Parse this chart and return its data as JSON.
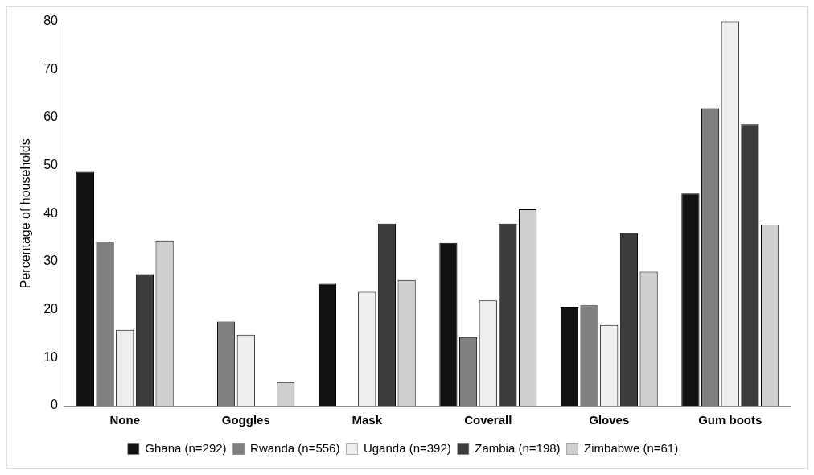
{
  "chart_data": {
    "type": "bar",
    "ylabel": "Percentage of households",
    "categories": [
      "None",
      "Goggles",
      "Mask",
      "Coverall",
      "Gloves",
      "Gum boots"
    ],
    "series": [
      {
        "name": "Ghana (n=292)",
        "color": "#111111",
        "values": [
          48.7,
          0,
          25.4,
          33.9,
          20.6,
          44.2
        ]
      },
      {
        "name": "Rwanda (n=556)",
        "color": "#808080",
        "values": [
          34.2,
          17.5,
          0,
          14.3,
          20.9,
          61.9
        ]
      },
      {
        "name": "Uganda (n=392)",
        "color": "#eeeeee",
        "values": [
          15.8,
          14.8,
          23.7,
          21.9,
          16.8,
          80
        ]
      },
      {
        "name": "Zambia (n=198)",
        "color": "#3c3c3c",
        "values": [
          27.4,
          0,
          37.9,
          37.9,
          35.9,
          58.6
        ]
      },
      {
        "name": "Zimbabwe (n=61)",
        "color": "#cfcfcf",
        "values": [
          34.4,
          4.9,
          26.2,
          40.9,
          27.9,
          37.7
        ]
      }
    ],
    "ylim": [
      0,
      80
    ],
    "yticks": [
      0,
      10,
      20,
      30,
      40,
      50,
      60,
      70,
      80
    ],
    "grid": false,
    "legend": "bottom"
  }
}
